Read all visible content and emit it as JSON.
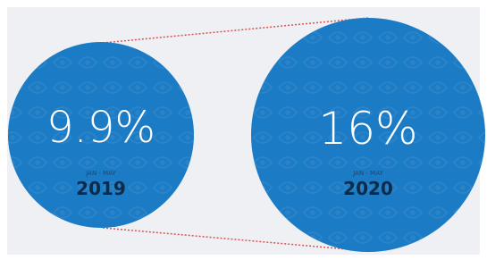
{
  "items": [
    {
      "value": "9.9%",
      "period": "JAN - MAY",
      "year": "2019"
    },
    {
      "value": "16%",
      "period": "JAN - MAY",
      "year": "2020"
    }
  ]
}
